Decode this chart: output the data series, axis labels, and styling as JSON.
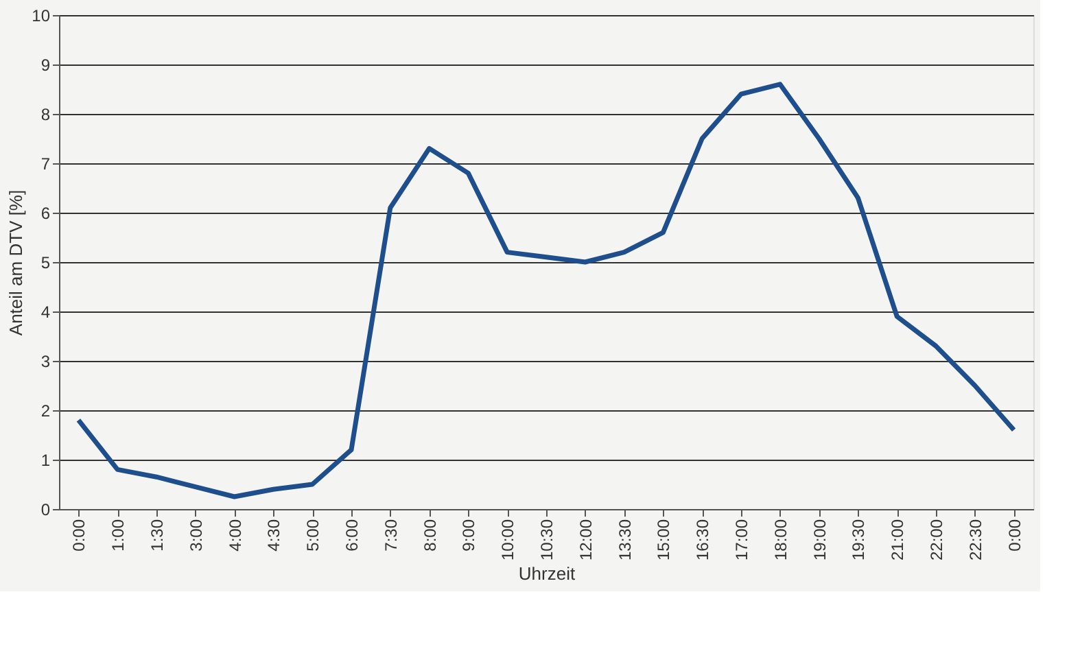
{
  "chart_data": {
    "type": "line",
    "xlabel": "Uhrzeit",
    "ylabel": "Anteil am DTV  [%]",
    "categories": [
      "0:00",
      "1:00",
      "1:30",
      "3:00",
      "4:00",
      "4:30",
      "5:00",
      "6:00",
      "7:30",
      "8:00",
      "9:00",
      "10:00",
      "10:30",
      "12:00",
      "13:30",
      "15:00",
      "16:30",
      "17:00",
      "18:00",
      "19:00",
      "19:30",
      "21:00",
      "22:00",
      "22:30",
      "0:00"
    ],
    "series": [
      {
        "color": "#1f4e8c",
        "values": [
          1.8,
          0.8,
          0.65,
          0.45,
          0.25,
          0.4,
          0.5,
          1.2,
          6.1,
          7.3,
          6.8,
          5.2,
          5.1,
          5.0,
          5.2,
          5.6,
          7.5,
          8.4,
          8.6,
          7.5,
          6.3,
          3.9,
          3.3,
          2.5,
          1.6
        ]
      }
    ],
    "ylim": [
      0,
      10
    ],
    "yticks": [
      0,
      1,
      2,
      3,
      4,
      5,
      6,
      7,
      8,
      9,
      10
    ],
    "grid": "y",
    "marker": "none",
    "line_style": "solid"
  }
}
